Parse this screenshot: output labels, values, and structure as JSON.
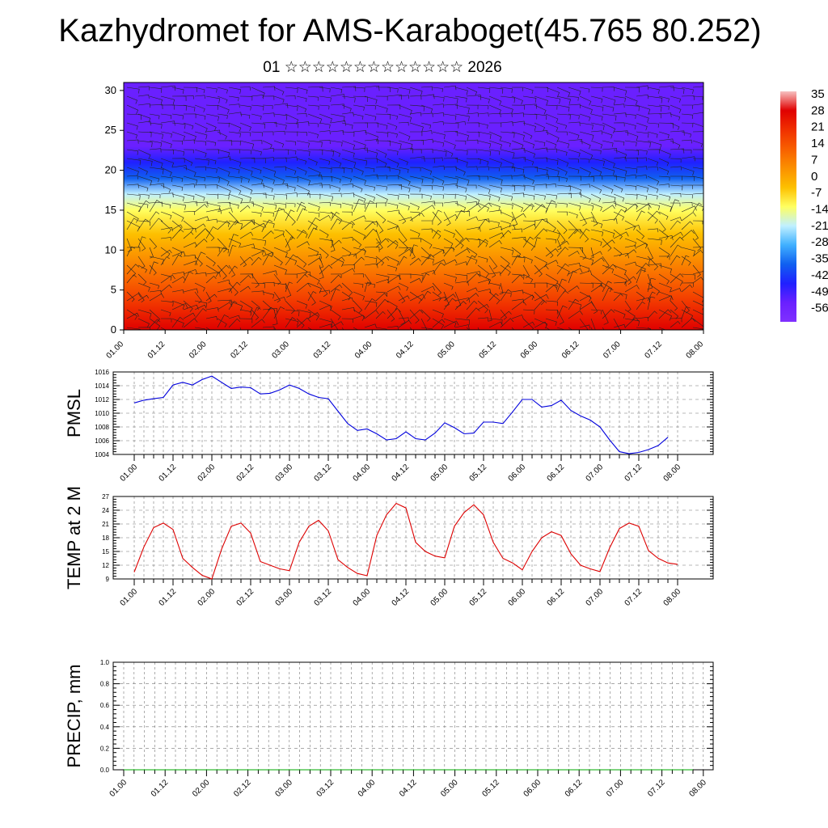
{
  "title": "Kazhydromet for AMS-Karaboget(45.765 80.252)",
  "subtitle": "01 ☆☆☆☆☆☆☆☆☆☆☆☆☆ 2026",
  "chart_data": [
    {
      "type": "heatmap",
      "name": "vertical temperature cross-section with wind barbs",
      "x_ticks": [
        "01.00",
        "01.12",
        "02.00",
        "02.12",
        "03.00",
        "03.12",
        "04.00",
        "04.12",
        "05.00",
        "05.12",
        "06.00",
        "06.12",
        "07.00",
        "07.12",
        "08.00"
      ],
      "y_ticks": [
        "0",
        "5",
        "10",
        "15",
        "20",
        "25",
        "30"
      ],
      "ylim": [
        0,
        31
      ],
      "colorbar": {
        "labels": [
          "35",
          "28",
          "21",
          "14",
          "7",
          "0",
          "-7",
          "-14",
          "-21",
          "-28",
          "-35",
          "-42",
          "-49",
          "-56"
        ],
        "stops": [
          "#f7c0c0",
          "#e00000",
          "#f03000",
          "#f86000",
          "#fb9000",
          "#fdc000",
          "#ffff60",
          "#c0f0ff",
          "#40b0ff",
          "#1060f0",
          "#2020ff",
          "#6a20ff",
          "#8030ff"
        ]
      },
      "temperature_profile": {
        "heights": [
          0,
          3,
          6,
          9,
          12,
          15,
          17,
          19,
          21,
          23,
          25,
          28,
          31
        ],
        "values": [
          30,
          22,
          14,
          6,
          -2,
          -12,
          -22,
          -35,
          -48,
          -56,
          -56,
          -56,
          -56
        ]
      }
    },
    {
      "type": "line",
      "ylabel": "PMSL",
      "x_ticks": [
        "01.00",
        "01.12",
        "02.00",
        "02.12",
        "03.00",
        "03.12",
        "04.00",
        "04.12",
        "05.00",
        "05.12",
        "06.00",
        "06.12",
        "07.00",
        "07.12",
        "08.00"
      ],
      "y_ticks": [
        "1004",
        "1006",
        "1008",
        "1010",
        "1012",
        "1014",
        "1016"
      ],
      "ylim": [
        1004,
        1016
      ],
      "color": "#0000dd",
      "series": [
        {
          "name": "PMSL",
          "values": [
            1011.5,
            1011.9,
            1012.1,
            1012.3,
            1014.1,
            1014.5,
            1014.1,
            1014.9,
            1015.4,
            1014.5,
            1013.6,
            1013.8,
            1013.7,
            1012.8,
            1012.9,
            1013.4,
            1014.1,
            1013.6,
            1012.8,
            1012.3,
            1012.1,
            1010.3,
            1008.5,
            1007.5,
            1007.7,
            1007.0,
            1006.1,
            1006.3,
            1007.3,
            1006.3,
            1006.1,
            1007.1,
            1008.6,
            1007.9,
            1007.0,
            1007.1,
            1008.7,
            1008.7,
            1008.5,
            1010.2,
            1012.0,
            1012.0,
            1010.9,
            1011.1,
            1011.9,
            1010.4,
            1009.6,
            1009.0,
            1008.0,
            1006.1,
            1004.4,
            1004.1,
            1004.3,
            1004.7,
            1005.3,
            1006.5
          ]
        }
      ]
    },
    {
      "type": "line",
      "ylabel": "TEMP at 2 M",
      "x_ticks": [
        "01.00",
        "01.12",
        "02.00",
        "02.12",
        "03.00",
        "03.12",
        "04.00",
        "04.12",
        "05.00",
        "05.12",
        "06.00",
        "06.12",
        "07.00",
        "07.12",
        "08.00"
      ],
      "y_ticks": [
        "9",
        "12",
        "15",
        "18",
        "21",
        "24",
        "27"
      ],
      "ylim": [
        9,
        27
      ],
      "color": "#dd0000",
      "series": [
        {
          "name": "T2M",
          "values": [
            10.5,
            16.0,
            20.2,
            21.2,
            19.8,
            13.5,
            11.5,
            9.8,
            9.0,
            15.5,
            20.5,
            21.2,
            19.0,
            12.8,
            12.0,
            11.2,
            10.8,
            17.0,
            20.5,
            21.8,
            19.5,
            13.2,
            11.5,
            10.2,
            9.7,
            18.5,
            23.0,
            25.5,
            24.5,
            17.0,
            15.0,
            14.0,
            13.6,
            20.5,
            23.5,
            25.2,
            23.0,
            17.0,
            13.5,
            12.5,
            11.0,
            15.0,
            18.0,
            19.3,
            18.5,
            14.5,
            12.0,
            11.2,
            10.6,
            15.8,
            20.0,
            21.2,
            20.5,
            15.2,
            13.5,
            12.5,
            12.2
          ]
        }
      ]
    },
    {
      "type": "line",
      "ylabel": "PRECIP, mm",
      "x_ticks": [
        "01.00",
        "01.12",
        "02.00",
        "02.12",
        "03.00",
        "03.12",
        "04.00",
        "04.12",
        "05.00",
        "05.12",
        "06.00",
        "06.12",
        "07.00",
        "07.12",
        "08.00"
      ],
      "y_ticks": [
        "0.0",
        "0.2",
        "0.4",
        "0.6",
        "0.8",
        "1.0"
      ],
      "ylim": [
        0,
        1
      ],
      "color": "#00aa00",
      "series": [
        {
          "name": "PRECIP",
          "values": [
            0,
            0,
            0,
            0,
            0,
            0,
            0,
            0,
            0,
            0,
            0,
            0,
            0,
            0,
            0,
            0,
            0,
            0,
            0,
            0,
            0,
            0,
            0,
            0,
            0,
            0,
            0,
            0,
            0,
            0,
            0,
            0,
            0,
            0,
            0,
            0,
            0,
            0,
            0,
            0,
            0,
            0,
            0,
            0,
            0,
            0,
            0,
            0,
            0,
            0,
            0,
            0,
            0,
            0,
            0,
            0
          ]
        }
      ]
    }
  ]
}
